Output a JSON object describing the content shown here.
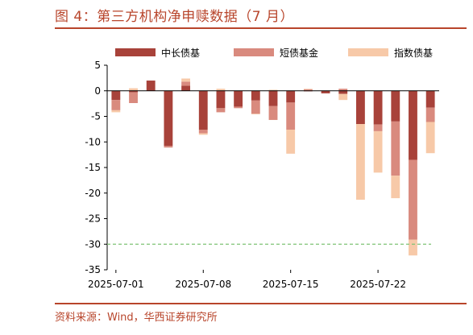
{
  "title": "图 4：第三方机构净申赎数据（7 月）",
  "source": "资料来源：Wind，华西证券研究所",
  "colors": {
    "accent": "#b8452b",
    "series1": "#a8423a",
    "series2": "#d98a7e",
    "series3": "#f7c9a8",
    "refline": "#7fc476"
  },
  "chart_data": {
    "type": "bar",
    "stacked": true,
    "x": [
      "2025-07-01",
      "2025-07-02",
      "2025-07-03",
      "2025-07-04",
      "2025-07-07",
      "2025-07-08",
      "2025-07-09",
      "2025-07-10",
      "2025-07-11",
      "2025-07-14",
      "2025-07-15",
      "2025-07-16",
      "2025-07-17",
      "2025-07-18",
      "2025-07-21",
      "2025-07-22",
      "2025-07-23",
      "2025-07-24",
      "2025-07-25"
    ],
    "x_tick_labels": [
      "2025-07-01",
      "2025-07-08",
      "2025-07-15",
      "2025-07-22"
    ],
    "x_tick_positions": [
      "2025-07-01",
      "2025-07-08",
      "2025-07-15",
      "2025-07-22"
    ],
    "series": [
      {
        "name": "中长债基",
        "values": [
          -1.8,
          -0.3,
          2.0,
          -10.8,
          1.0,
          -7.6,
          -3.4,
          -3.1,
          -1.9,
          -3.0,
          -2.3,
          -0.1,
          -0.5,
          -0.6,
          -6.5,
          -6.6,
          -6.0,
          -13.5,
          -3.3
        ]
      },
      {
        "name": "短债基金",
        "values": [
          -2.0,
          -2.1,
          0.0,
          -0.3,
          0.8,
          -0.7,
          -0.8,
          -0.3,
          -2.6,
          -2.7,
          -5.3,
          0.3,
          0.0,
          0.4,
          0.0,
          -1.3,
          -10.6,
          -15.6,
          -2.8
        ]
      },
      {
        "name": "指数债基",
        "values": [
          -0.4,
          0.5,
          0.0,
          0.0,
          0.6,
          -0.3,
          0.4,
          0.0,
          -0.1,
          0.2,
          -4.7,
          0.1,
          0.0,
          -1.2,
          -14.8,
          -8.1,
          -4.4,
          -3.1,
          -6.1
        ]
      }
    ],
    "reference_line": {
      "y": -30,
      "style": "dashed"
    },
    "ylim": [
      -35,
      5
    ],
    "yticks": [
      5,
      0,
      -5,
      -10,
      -15,
      -20,
      -25,
      -30,
      -35
    ],
    "legend": "top",
    "grid": false
  }
}
